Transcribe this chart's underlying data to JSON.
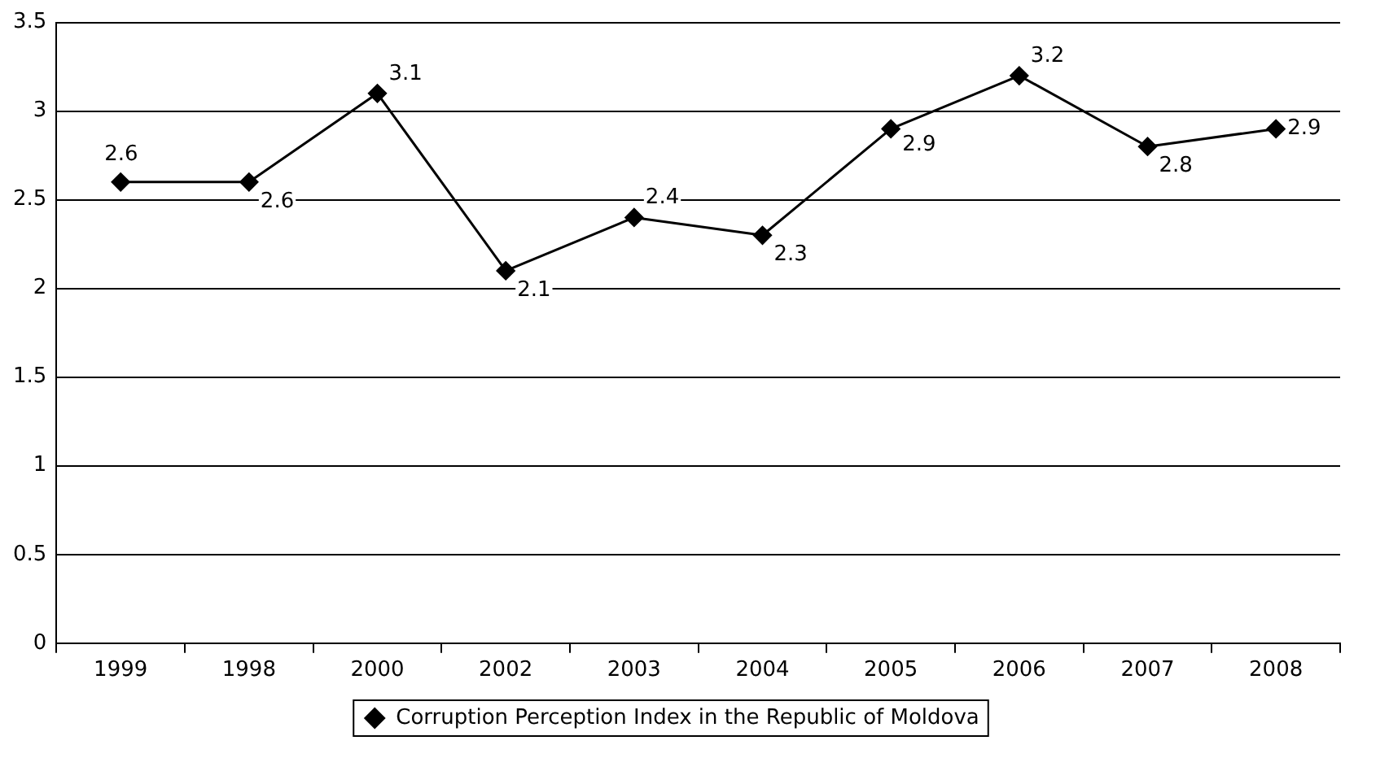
{
  "chart_data": {
    "type": "line",
    "categories": [
      "1999",
      "1998",
      "2000",
      "2002",
      "2003",
      "2004",
      "2005",
      "2006",
      "2007",
      "2008"
    ],
    "series": [
      {
        "name": "Corruption Perception Index in the Republic of Moldova",
        "color": "#000000",
        "values": [
          2.6,
          2.6,
          3.1,
          2.1,
          2.4,
          2.3,
          2.9,
          3.2,
          2.8,
          2.9
        ]
      }
    ],
    "ylim": [
      0,
      3.5
    ],
    "yticks": [
      0,
      0.5,
      1,
      1.5,
      2,
      2.5,
      3,
      3.5
    ],
    "grid": "y",
    "legend": "bottom",
    "marker": "diamond",
    "line_style": "solid",
    "data_labels": true
  }
}
